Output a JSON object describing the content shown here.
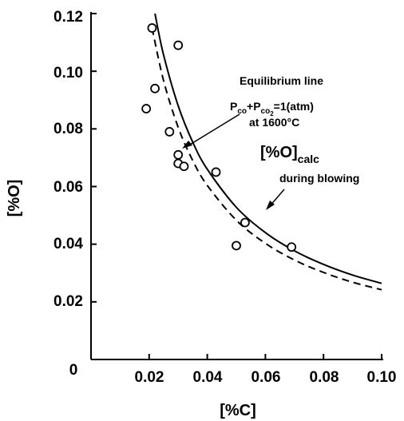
{
  "chart_data": {
    "type": "scatter",
    "xlabel": "[%C]",
    "ylabel": "[%O]",
    "xlim": [
      0,
      0.1
    ],
    "ylim": [
      0,
      0.12
    ],
    "x_ticks": [
      "0.02",
      "0.04",
      "0.06",
      "0.08",
      "0.10"
    ],
    "y_ticks": [
      "0.02",
      "0.04",
      "0.06",
      "0.08",
      "0.10",
      "0.12"
    ],
    "origin_label": "0",
    "grid": false,
    "points": [
      {
        "x": 0.019,
        "y": 0.087
      },
      {
        "x": 0.021,
        "y": 0.115
      },
      {
        "x": 0.022,
        "y": 0.094
      },
      {
        "x": 0.027,
        "y": 0.079
      },
      {
        "x": 0.03,
        "y": 0.068
      },
      {
        "x": 0.03,
        "y": 0.071
      },
      {
        "x": 0.03,
        "y": 0.109
      },
      {
        "x": 0.032,
        "y": 0.067
      },
      {
        "x": 0.043,
        "y": 0.065
      },
      {
        "x": 0.05,
        "y": 0.0395
      },
      {
        "x": 0.053,
        "y": 0.0475
      },
      {
        "x": 0.069,
        "y": 0.039
      }
    ],
    "curves": [
      {
        "style": "solid",
        "x": [
          0.022,
          0.025,
          0.03,
          0.035,
          0.04,
          0.05,
          0.06,
          0.07,
          0.08,
          0.09,
          0.1
        ],
        "y": [
          0.12,
          0.1055,
          0.088,
          0.0754,
          0.066,
          0.0528,
          0.044,
          0.0377,
          0.033,
          0.0293,
          0.0264
        ]
      },
      {
        "style": "dashed",
        "x": [
          0.021,
          0.025,
          0.03,
          0.035,
          0.04,
          0.05,
          0.06,
          0.07,
          0.08,
          0.09,
          0.1
        ],
        "y": [
          0.115,
          0.0966,
          0.0805,
          0.069,
          0.0604,
          0.0483,
          0.0403,
          0.0345,
          0.0302,
          0.0268,
          0.0242
        ]
      }
    ],
    "annotations": {
      "equilibrium": {
        "line1": "Equilibrium line",
        "pco": "P",
        "pco_sub": "co",
        "plus": "+",
        "pco2": "P",
        "pco2_sub": "co",
        "pco2_subsub": "2",
        "eq": "=1(atm)",
        "line3": "at 1600°C"
      },
      "calc": {
        "main": "[%O]",
        "sub": "calc",
        "line2": "during blowing"
      }
    }
  }
}
